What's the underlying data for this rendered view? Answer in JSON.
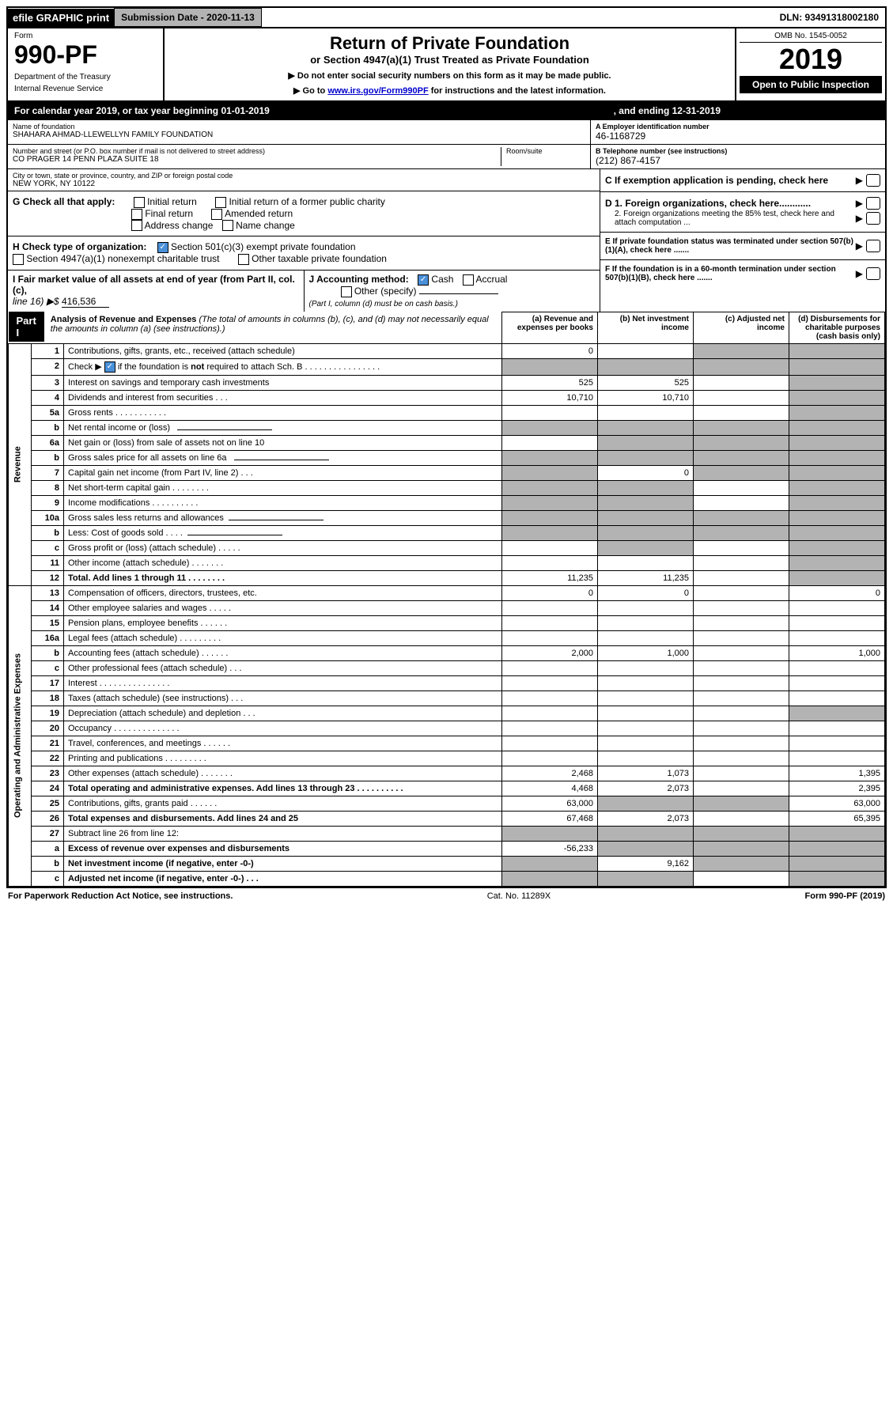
{
  "topbar": {
    "efile": "efile GRAPHIC print",
    "submission": "Submission Date - 2020-11-13",
    "dln": "DLN: 93491318002180"
  },
  "header": {
    "form_label": "Form",
    "form_number": "990-PF",
    "dept1": "Department of the Treasury",
    "dept2": "Internal Revenue Service",
    "title": "Return of Private Foundation",
    "subtitle": "or Section 4947(a)(1) Trust Treated as Private Foundation",
    "note1": "▶ Do not enter social security numbers on this form as it may be made public.",
    "note2_pre": "▶ Go to ",
    "note2_link": "www.irs.gov/Form990PF",
    "note2_post": " for instructions and the latest information.",
    "omb": "OMB No. 1545-0052",
    "year": "2019",
    "open": "Open to Public Inspection"
  },
  "cal_year": {
    "text": "For calendar year 2019, or tax year beginning 01-01-2019",
    "ending": ", and ending 12-31-2019"
  },
  "info": {
    "name_label": "Name of foundation",
    "name": "SHAHARA AHMAD-LLEWELLYN FAMILY FOUNDATION",
    "addr_label": "Number and street (or P.O. box number if mail is not delivered to street address)",
    "room_label": "Room/suite",
    "addr": "CO PRAGER 14 PENN PLAZA SUITE 18",
    "city_label": "City or town, state or province, country, and ZIP or foreign postal code",
    "city": "NEW YORK, NY  10122",
    "a_label": "A Employer identification number",
    "a_val": "46-1168729",
    "b_label": "B Telephone number (see instructions)",
    "b_val": "(212) 867-4157",
    "c_label": "C If exemption application is pending, check here",
    "d1": "D 1. Foreign organizations, check here............",
    "d2": "2. Foreign organizations meeting the 85% test, check here and attach computation ...",
    "e": "E  If private foundation status was terminated under section 507(b)(1)(A), check here .......",
    "f": "F  If the foundation is in a 60-month termination under section 507(b)(1)(B), check here .......",
    "g_label": "G Check all that apply:",
    "g_opts": [
      "Initial return",
      "Initial return of a former public charity",
      "Final return",
      "Amended return",
      "Address change",
      "Name change"
    ],
    "h_label": "H Check type of organization:",
    "h1": "Section 501(c)(3) exempt private foundation",
    "h2": "Section 4947(a)(1) nonexempt charitable trust",
    "h3": "Other taxable private foundation",
    "i_label": "I Fair market value of all assets at end of year (from Part II, col. (c),",
    "i_line16": "line 16) ▶$ ",
    "i_val": "416,536",
    "j_label": "J Accounting method:",
    "j_cash": "Cash",
    "j_accrual": "Accrual",
    "j_other": "Other (specify)",
    "j_note": "(Part I, column (d) must be on cash basis.)"
  },
  "part1": {
    "label": "Part I",
    "title_bold": "Analysis of Revenue and Expenses",
    "title_rest": " (The total of amounts in columns (b), (c), and (d) may not necessarily equal the amounts in column (a) (see instructions).)",
    "col_a": "(a)   Revenue and expenses per books",
    "col_b": "(b)  Net investment income",
    "col_c": "(c)  Adjusted net income",
    "col_d": "(d)  Disbursements for charitable purposes (cash basis only)"
  },
  "revenue_label": "Revenue",
  "expense_label": "Operating and Administrative Expenses",
  "lines": [
    {
      "num": "1",
      "desc": "Contributions, gifts, grants, etc., received (attach schedule)",
      "a": "0",
      "b": "",
      "c": "shaded",
      "d": "shaded"
    },
    {
      "num": "2",
      "desc": "Check ▶ ☑ if the foundation is not required to attach Sch. B",
      "a": "shaded",
      "b": "shaded",
      "c": "shaded",
      "d": "shaded",
      "desc_special": true
    },
    {
      "num": "3",
      "desc": "Interest on savings and temporary cash investments",
      "a": "525",
      "b": "525",
      "c": "",
      "d": "shaded"
    },
    {
      "num": "4",
      "desc": "Dividends and interest from securities   .   .   .",
      "a": "10,710",
      "b": "10,710",
      "c": "",
      "d": "shaded"
    },
    {
      "num": "5a",
      "desc": "Gross rents      .   .   .   .   .   .   .   .   .   .   .",
      "a": "",
      "b": "",
      "c": "",
      "d": "shaded"
    },
    {
      "num": "b",
      "desc": "Net rental income or (loss)  ",
      "a": "shaded",
      "b": "shaded",
      "c": "shaded",
      "d": "shaded",
      "inline": true
    },
    {
      "num": "6a",
      "desc": "Net gain or (loss) from sale of assets not on line 10",
      "a": "",
      "b": "shaded",
      "c": "shaded",
      "d": "shaded"
    },
    {
      "num": "b",
      "desc": "Gross sales price for all assets on line 6a  ",
      "a": "shaded",
      "b": "shaded",
      "c": "shaded",
      "d": "shaded",
      "inline": true
    },
    {
      "num": "7",
      "desc": "Capital gain net income (from Part IV, line 2)   .   .   .",
      "a": "shaded",
      "b": "0",
      "c": "shaded",
      "d": "shaded"
    },
    {
      "num": "8",
      "desc": "Net short-term capital gain   .   .   .   .   .   .   .   .",
      "a": "shaded",
      "b": "shaded",
      "c": "",
      "d": "shaded"
    },
    {
      "num": "9",
      "desc": "Income modifications  .   .   .   .   .   .   .   .   .   .",
      "a": "shaded",
      "b": "shaded",
      "c": "",
      "d": "shaded"
    },
    {
      "num": "10a",
      "desc": "Gross sales less returns and allowances",
      "a": "shaded",
      "b": "shaded",
      "c": "shaded",
      "d": "shaded",
      "inline": true
    },
    {
      "num": "b",
      "desc": "Less: Cost of goods sold      .   .   .   .",
      "a": "shaded",
      "b": "shaded",
      "c": "shaded",
      "d": "shaded",
      "inline": true
    },
    {
      "num": "c",
      "desc": "Gross profit or (loss) (attach schedule)   .   .   .   .   .",
      "a": "",
      "b": "shaded",
      "c": "",
      "d": "shaded"
    },
    {
      "num": "11",
      "desc": "Other income (attach schedule)    .   .   .   .   .   .   .",
      "a": "",
      "b": "",
      "c": "",
      "d": "shaded"
    },
    {
      "num": "12",
      "desc": "Total. Add lines 1 through 11   .   .   .   .   .   .   .   .",
      "a": "11,235",
      "b": "11,235",
      "c": "",
      "d": "shaded",
      "bold": true
    }
  ],
  "exp_lines": [
    {
      "num": "13",
      "desc": "Compensation of officers, directors, trustees, etc.",
      "a": "0",
      "b": "0",
      "c": "",
      "d": "0"
    },
    {
      "num": "14",
      "desc": "Other employee salaries and wages    .   .   .   .   .",
      "a": "",
      "b": "",
      "c": "",
      "d": ""
    },
    {
      "num": "15",
      "desc": "Pension plans, employee benefits   .   .   .   .   .   .",
      "a": "",
      "b": "",
      "c": "",
      "d": ""
    },
    {
      "num": "16a",
      "desc": "Legal fees (attach schedule)  .   .   .   .   .   .   .   .   .",
      "a": "",
      "b": "",
      "c": "",
      "d": ""
    },
    {
      "num": "b",
      "desc": "Accounting fees (attach schedule)   .   .   .   .   .   .",
      "a": "2,000",
      "b": "1,000",
      "c": "",
      "d": "1,000"
    },
    {
      "num": "c",
      "desc": "Other professional fees (attach schedule)    .   .   .",
      "a": "",
      "b": "",
      "c": "",
      "d": ""
    },
    {
      "num": "17",
      "desc": "Interest   .   .   .   .   .   .   .   .   .   .   .   .   .   .   .",
      "a": "",
      "b": "",
      "c": "",
      "d": ""
    },
    {
      "num": "18",
      "desc": "Taxes (attach schedule) (see instructions)    .   .   .",
      "a": "",
      "b": "",
      "c": "",
      "d": ""
    },
    {
      "num": "19",
      "desc": "Depreciation (attach schedule) and depletion    .   .   .",
      "a": "",
      "b": "",
      "c": "",
      "d": "shaded"
    },
    {
      "num": "20",
      "desc": "Occupancy  .   .   .   .   .   .   .   .   .   .   .   .   .   .",
      "a": "",
      "b": "",
      "c": "",
      "d": ""
    },
    {
      "num": "21",
      "desc": "Travel, conferences, and meetings  .   .   .   .   .   .",
      "a": "",
      "b": "",
      "c": "",
      "d": ""
    },
    {
      "num": "22",
      "desc": "Printing and publications  .   .   .   .   .   .   .   .   .",
      "a": "",
      "b": "",
      "c": "",
      "d": ""
    },
    {
      "num": "23",
      "desc": "Other expenses (attach schedule)   .   .   .   .   .   .   .",
      "a": "2,468",
      "b": "1,073",
      "c": "",
      "d": "1,395"
    },
    {
      "num": "24",
      "desc": "Total operating and administrative expenses. Add lines 13 through 23   .   .   .   .   .   .   .   .   .   .",
      "a": "4,468",
      "b": "2,073",
      "c": "",
      "d": "2,395",
      "bold": true
    },
    {
      "num": "25",
      "desc": "Contributions, gifts, grants paid      .   .   .   .   .   .",
      "a": "63,000",
      "b": "shaded",
      "c": "shaded",
      "d": "63,000"
    },
    {
      "num": "26",
      "desc": "Total expenses and disbursements. Add lines 24 and 25",
      "a": "67,468",
      "b": "2,073",
      "c": "",
      "d": "65,395",
      "bold": true
    },
    {
      "num": "27",
      "desc": "Subtract line 26 from line 12:",
      "a": "shaded",
      "b": "shaded",
      "c": "shaded",
      "d": "shaded"
    },
    {
      "num": "a",
      "desc": "Excess of revenue over expenses and disbursements",
      "a": "-56,233",
      "b": "shaded",
      "c": "shaded",
      "d": "shaded",
      "bold": true
    },
    {
      "num": "b",
      "desc": "Net investment income (if negative, enter -0-)",
      "a": "shaded",
      "b": "9,162",
      "c": "shaded",
      "d": "shaded",
      "bold": true
    },
    {
      "num": "c",
      "desc": "Adjusted net income (if negative, enter -0-)   .   .   .",
      "a": "shaded",
      "b": "shaded",
      "c": "",
      "d": "shaded",
      "bold": true
    }
  ],
  "footer": {
    "left": "For Paperwork Reduction Act Notice, see instructions.",
    "center": "Cat. No. 11289X",
    "right": "Form 990-PF (2019)"
  }
}
